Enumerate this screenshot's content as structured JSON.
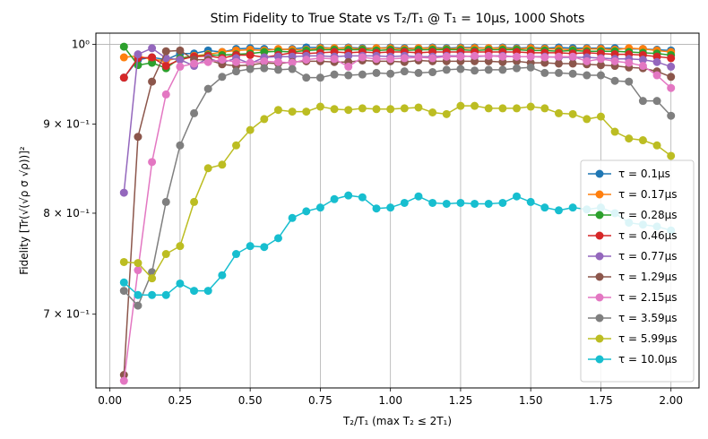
{
  "chart_data": {
    "type": "line",
    "title": "Stim Fidelity to True State vs T₂/T₁ @ T₁ = 10μs, 1000 Shots",
    "xlabel": "T₂/T₁ (max T₂ ≤ 2T₁)",
    "ylabel": "Fidelity [Tr(√(√ρ σ √ρ))]²",
    "yscale": "log",
    "xlim": [
      -0.05,
      2.1
    ],
    "ylim": [
      0.635,
      1.015
    ],
    "grid": "x-major",
    "legend_position": "right",
    "x_ticks": [
      {
        "value": 0.0,
        "label": "0.00"
      },
      {
        "value": 0.25,
        "label": "0.25"
      },
      {
        "value": 0.5,
        "label": "0.50"
      },
      {
        "value": 0.75,
        "label": "0.75"
      },
      {
        "value": 1.0,
        "label": "1.00"
      },
      {
        "value": 1.25,
        "label": "1.25"
      },
      {
        "value": 1.5,
        "label": "1.50"
      },
      {
        "value": 1.75,
        "label": "1.75"
      },
      {
        "value": 2.0,
        "label": "2.00"
      }
    ],
    "y_ticks": [
      {
        "value": 0.7,
        "label": "7 × 10⁻¹"
      },
      {
        "value": 0.8,
        "label": "8 × 10⁻¹"
      },
      {
        "value": 0.9,
        "label": "9 × 10⁻¹"
      },
      {
        "value": 1.0,
        "label": "10⁰"
      }
    ],
    "x": [
      0.05,
      0.1,
      0.15,
      0.2,
      0.25,
      0.3,
      0.35,
      0.4,
      0.45,
      0.5,
      0.55,
      0.6,
      0.65,
      0.7,
      0.75,
      0.8,
      0.85,
      0.9,
      0.95,
      1.0,
      1.05,
      1.1,
      1.15,
      1.2,
      1.25,
      1.3,
      1.35,
      1.4,
      1.45,
      1.5,
      1.55,
      1.6,
      1.65,
      1.7,
      1.75,
      1.8,
      1.85,
      1.9,
      1.95,
      2.0
    ],
    "series": [
      {
        "name": "τ = 0.1μs",
        "color": "#1f77b4",
        "values": [
          0.957,
          0.98,
          0.983,
          0.98,
          0.988,
          0.988,
          0.992,
          0.99,
          0.994,
          0.995,
          0.994,
          0.993,
          0.994,
          0.996,
          0.996,
          0.995,
          0.996,
          0.995,
          0.995,
          0.996,
          0.995,
          0.995,
          0.996,
          0.995,
          0.996,
          0.996,
          0.995,
          0.996,
          0.995,
          0.996,
          0.995,
          0.996,
          0.995,
          0.995,
          0.995,
          0.995,
          0.994,
          0.994,
          0.993,
          0.992
        ]
      },
      {
        "name": "τ = 0.17μs",
        "color": "#ff7f0e",
        "values": [
          0.983,
          0.985,
          0.98,
          0.979,
          0.982,
          0.985,
          0.987,
          0.99,
          0.992,
          0.993,
          0.992,
          0.994,
          0.993,
          0.993,
          0.995,
          0.995,
          0.995,
          0.994,
          0.995,
          0.995,
          0.994,
          0.995,
          0.995,
          0.994,
          0.995,
          0.995,
          0.995,
          0.995,
          0.994,
          0.995,
          0.994,
          0.994,
          0.993,
          0.994,
          0.994,
          0.993,
          0.995,
          0.994,
          0.992,
          0.99
        ]
      },
      {
        "name": "τ = 0.28μs",
        "color": "#2ca02c",
        "values": [
          0.997,
          0.973,
          0.976,
          0.969,
          0.982,
          0.984,
          0.986,
          0.986,
          0.987,
          0.988,
          0.99,
          0.991,
          0.99,
          0.992,
          0.993,
          0.993,
          0.993,
          0.993,
          0.992,
          0.993,
          0.992,
          0.993,
          0.993,
          0.993,
          0.993,
          0.992,
          0.993,
          0.993,
          0.993,
          0.992,
          0.992,
          0.991,
          0.992,
          0.991,
          0.991,
          0.991,
          0.99,
          0.989,
          0.988,
          0.986
        ]
      },
      {
        "name": "τ = 0.46μs",
        "color": "#d62728",
        "values": [
          0.957,
          0.982,
          0.983,
          0.972,
          0.98,
          0.984,
          0.985,
          0.982,
          0.986,
          0.986,
          0.983,
          0.986,
          0.989,
          0.988,
          0.989,
          0.99,
          0.989,
          0.99,
          0.989,
          0.99,
          0.99,
          0.989,
          0.99,
          0.99,
          0.99,
          0.99,
          0.99,
          0.99,
          0.99,
          0.989,
          0.989,
          0.989,
          0.988,
          0.989,
          0.988,
          0.987,
          0.987,
          0.986,
          0.984,
          0.982
        ]
      },
      {
        "name": "τ = 0.77μs",
        "color": "#9467bd",
        "values": [
          0.822,
          0.987,
          0.995,
          0.982,
          0.98,
          0.972,
          0.982,
          0.976,
          0.982,
          0.975,
          0.983,
          0.984,
          0.984,
          0.985,
          0.985,
          0.984,
          0.985,
          0.985,
          0.985,
          0.984,
          0.985,
          0.984,
          0.984,
          0.985,
          0.985,
          0.984,
          0.985,
          0.985,
          0.984,
          0.984,
          0.984,
          0.983,
          0.983,
          0.983,
          0.982,
          0.981,
          0.981,
          0.98,
          0.977,
          0.971
        ]
      },
      {
        "name": "τ = 1.29μs",
        "color": "#8c564b",
        "values": [
          0.646,
          0.885,
          0.952,
          0.991,
          0.992,
          0.98,
          0.98,
          0.974,
          0.972,
          0.973,
          0.976,
          0.975,
          0.977,
          0.978,
          0.978,
          0.977,
          0.977,
          0.979,
          0.978,
          0.978,
          0.977,
          0.979,
          0.978,
          0.978,
          0.978,
          0.978,
          0.978,
          0.977,
          0.978,
          0.976,
          0.976,
          0.975,
          0.975,
          0.974,
          0.973,
          0.972,
          0.97,
          0.969,
          0.965,
          0.958
        ]
      },
      {
        "name": "τ = 2.15μs",
        "color": "#e377c2",
        "values": [
          0.641,
          0.742,
          0.856,
          0.936,
          0.971,
          0.975,
          0.977,
          0.98,
          0.977,
          0.976,
          0.978,
          0.977,
          0.976,
          0.98,
          0.982,
          0.981,
          0.971,
          0.983,
          0.981,
          0.981,
          0.982,
          0.983,
          0.982,
          0.984,
          0.984,
          0.985,
          0.985,
          0.984,
          0.984,
          0.984,
          0.983,
          0.984,
          0.984,
          0.978,
          0.981,
          0.978,
          0.976,
          0.972,
          0.96,
          0.944
        ]
      },
      {
        "name": "τ = 3.59μs",
        "color": "#7f7f7f",
        "values": [
          0.722,
          0.708,
          0.74,
          0.812,
          0.875,
          0.913,
          0.943,
          0.958,
          0.965,
          0.968,
          0.969,
          0.967,
          0.968,
          0.957,
          0.957,
          0.961,
          0.96,
          0.961,
          0.963,
          0.962,
          0.965,
          0.963,
          0.964,
          0.967,
          0.968,
          0.966,
          0.967,
          0.967,
          0.969,
          0.97,
          0.963,
          0.963,
          0.962,
          0.96,
          0.96,
          0.953,
          0.952,
          0.928,
          0.928,
          0.91
        ]
      },
      {
        "name": "τ = 5.99μs",
        "color": "#bcbd22",
        "values": [
          0.75,
          0.749,
          0.734,
          0.758,
          0.766,
          0.812,
          0.849,
          0.853,
          0.875,
          0.893,
          0.906,
          0.917,
          0.915,
          0.915,
          0.921,
          0.918,
          0.917,
          0.919,
          0.918,
          0.918,
          0.919,
          0.92,
          0.914,
          0.912,
          0.922,
          0.922,
          0.919,
          0.919,
          0.919,
          0.921,
          0.919,
          0.913,
          0.912,
          0.906,
          0.909,
          0.891,
          0.883,
          0.881,
          0.875,
          0.863
        ]
      },
      {
        "name": "τ = 10.0μs",
        "color": "#17becf",
        "values": [
          0.73,
          0.718,
          0.718,
          0.718,
          0.729,
          0.722,
          0.722,
          0.737,
          0.758,
          0.766,
          0.765,
          0.774,
          0.795,
          0.802,
          0.806,
          0.815,
          0.819,
          0.817,
          0.805,
          0.806,
          0.811,
          0.818,
          0.811,
          0.81,
          0.811,
          0.81,
          0.81,
          0.811,
          0.818,
          0.812,
          0.806,
          0.803,
          0.806,
          0.804,
          0.806,
          0.8,
          0.79,
          0.788,
          0.786,
          0.782
        ]
      }
    ]
  }
}
